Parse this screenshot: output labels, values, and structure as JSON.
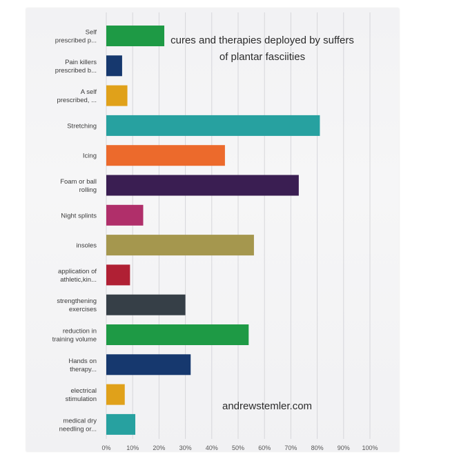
{
  "chart_data": {
    "type": "bar",
    "orientation": "horizontal",
    "title": "cures and therapies deployed by suffers of plantar fasciities",
    "xlabel": "",
    "ylabel": "",
    "xlim": [
      0,
      100
    ],
    "grid": true,
    "x_ticks": [
      "0%",
      "10%",
      "20%",
      "30%",
      "40%",
      "50%",
      "60%",
      "70%",
      "80%",
      "90%",
      "100%"
    ],
    "categories": [
      [
        "Self",
        "prescribed p..."
      ],
      [
        "Pain killers",
        "prescribed b..."
      ],
      [
        "A self",
        "prescribed, ..."
      ],
      [
        "Stretching"
      ],
      [
        "Icing"
      ],
      [
        "Foam or ball",
        "rolling"
      ],
      [
        "Night splints"
      ],
      [
        "insoles"
      ],
      [
        "application of",
        "athletic,kin..."
      ],
      [
        "strengthening",
        "exercises"
      ],
      [
        "reduction in",
        "training volume"
      ],
      [
        "Hands on",
        "therapy..."
      ],
      [
        "electrical",
        "stimulation"
      ],
      [
        "medical dry",
        "needling or..."
      ]
    ],
    "values": [
      22,
      6,
      8,
      81,
      45,
      73,
      14,
      56,
      9,
      30,
      54,
      32,
      7,
      11
    ],
    "colors": [
      "#1e9a45",
      "#16386e",
      "#e0a11a",
      "#27a1a0",
      "#ec6a2c",
      "#3a1e52",
      "#b02f6a",
      "#a5974e",
      "#b02034",
      "#363f47",
      "#1e9a45",
      "#16386e",
      "#e0a11a",
      "#27a1a0"
    ]
  },
  "watermark": "andrewstemler.com"
}
